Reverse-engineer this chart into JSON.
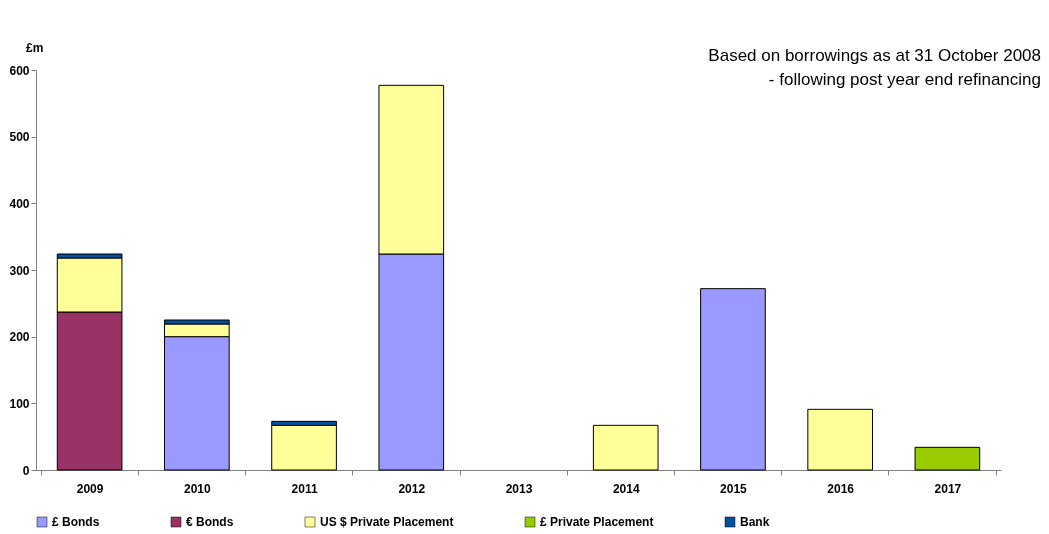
{
  "chart_data": {
    "type": "bar",
    "stacked": true,
    "ylabel": "£m",
    "annotations": [
      "Based on borrowings as at 31 October 2008\n - following post year end refinancing"
    ],
    "categories": [
      "2009",
      "2010",
      "2011",
      "2012",
      "2013",
      "2014",
      "2015",
      "2016",
      "2017"
    ],
    "series": [
      {
        "name": "£ Bonds",
        "color": "#9999ff",
        "values": [
          null,
          200,
          null,
          324,
          null,
          null,
          272,
          null,
          null
        ]
      },
      {
        "name": "€ Bonds",
        "color": "#993366",
        "values": [
          237,
          null,
          null,
          null,
          null,
          null,
          null,
          null,
          null
        ]
      },
      {
        "name": "US $ Private Placement",
        "color": "#ffff99",
        "values": [
          81,
          19,
          67,
          253,
          null,
          67,
          null,
          91,
          null
        ]
      },
      {
        "name": "£ Private Placement",
        "color": "#99cc00",
        "values": [
          null,
          null,
          null,
          null,
          null,
          null,
          null,
          null,
          34
        ]
      },
      {
        "name": "Bank",
        "color": "#00509e",
        "values": [
          6,
          6,
          6,
          null,
          null,
          null,
          null,
          null,
          null
        ]
      }
    ],
    "ylim": [
      0,
      600
    ],
    "yticks": [
      0,
      100,
      200,
      300,
      400,
      500,
      600
    ],
    "grid": false,
    "legend": "bottom"
  }
}
